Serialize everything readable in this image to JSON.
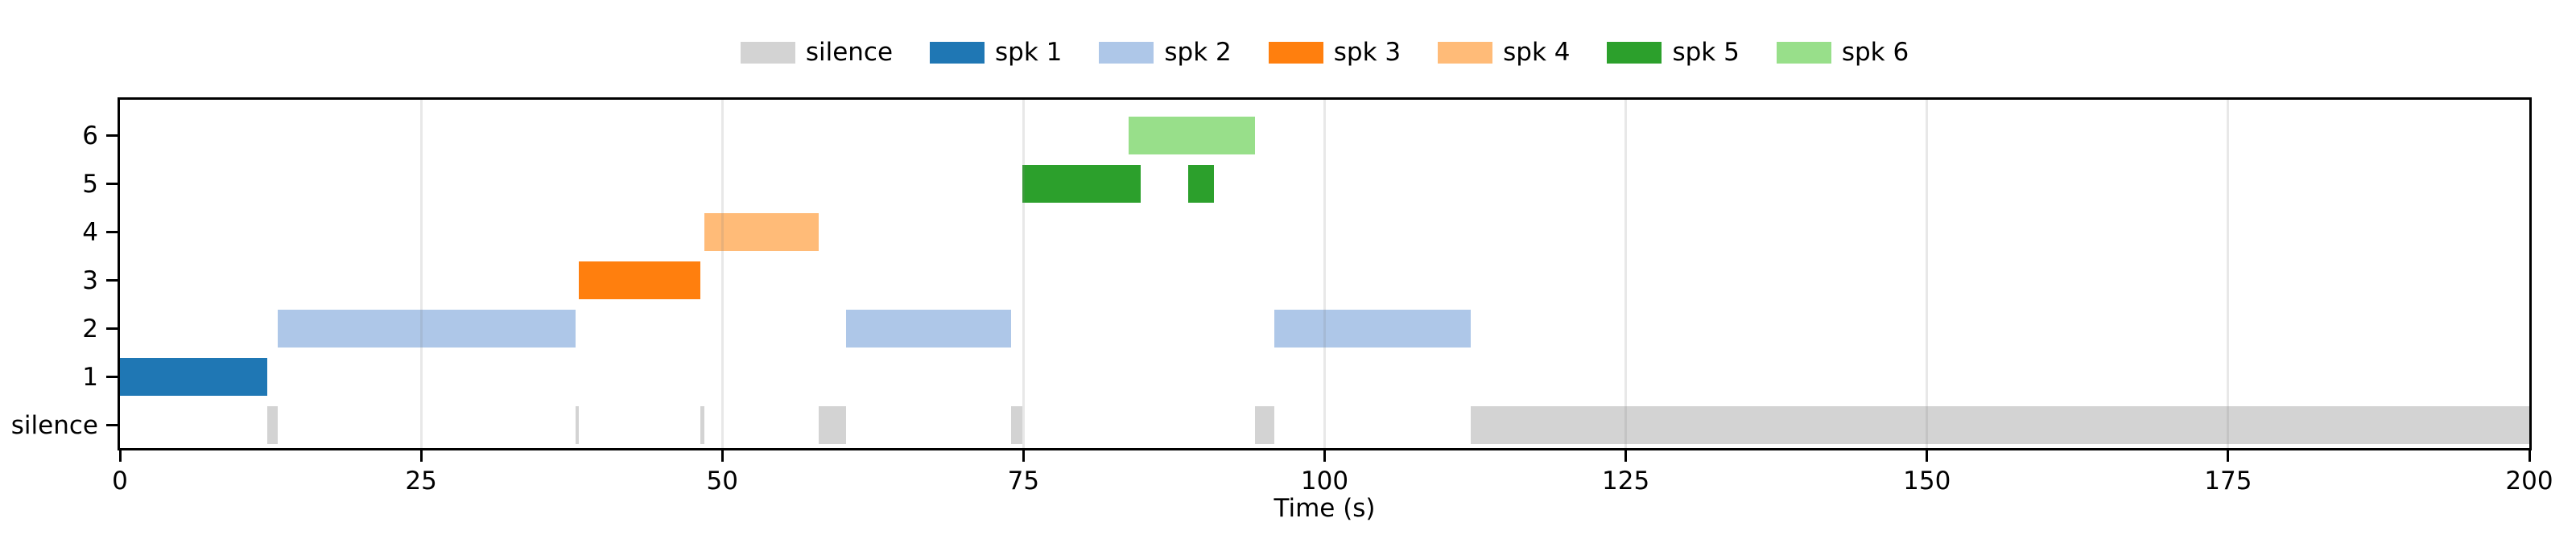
{
  "figure": {
    "background": "#ffffff",
    "text_color": "#000000"
  },
  "legend": {
    "position": "top-center",
    "items": [
      {
        "label": "silence",
        "color": "#d3d3d3"
      },
      {
        "label": "spk 1",
        "color": "#1f77b4"
      },
      {
        "label": "spk 2",
        "color": "#aec7e8"
      },
      {
        "label": "spk 3",
        "color": "#ff7f0e"
      },
      {
        "label": "spk 4",
        "color": "#ffbb78"
      },
      {
        "label": "spk 5",
        "color": "#2ca02c"
      },
      {
        "label": "spk 6",
        "color": "#98df8a"
      }
    ]
  },
  "axes": {
    "x_tick_labels": [
      "0",
      "25",
      "50",
      "75",
      "100",
      "125",
      "150",
      "175",
      "200"
    ],
    "y_tick_labels": [
      "silence",
      "1",
      "2",
      "3",
      "4",
      "5",
      "6"
    ]
  },
  "chart_data": {
    "type": "bar",
    "subtype": "horizontal-timeline-gantt (speaker diarization)",
    "title": "",
    "xlabel": "Time (s)",
    "ylabel": "",
    "xlim": [
      0,
      200
    ],
    "xticks": [
      0,
      25,
      50,
      75,
      100,
      125,
      150,
      175,
      200
    ],
    "rows": [
      "silence",
      "1",
      "2",
      "3",
      "4",
      "5",
      "6"
    ],
    "grid": {
      "on": true,
      "axis": "x",
      "drawn_over_bars": true
    },
    "legend_position": "above-plot-center",
    "series": [
      {
        "name": "silence",
        "row": "silence",
        "color": "#d3d3d3",
        "intervals": [
          [
            12.2,
            13.1
          ],
          [
            37.8,
            38.1
          ],
          [
            48.2,
            48.5
          ],
          [
            58.0,
            60.3
          ],
          [
            74.0,
            74.9
          ],
          [
            94.2,
            95.8
          ],
          [
            112.1,
            200.0
          ]
        ]
      },
      {
        "name": "spk 1",
        "row": "1",
        "color": "#1f77b4",
        "intervals": [
          [
            0.0,
            12.2
          ]
        ]
      },
      {
        "name": "spk 2",
        "row": "2",
        "color": "#aec7e8",
        "intervals": [
          [
            13.1,
            37.8
          ],
          [
            60.3,
            74.0
          ],
          [
            95.8,
            112.1
          ]
        ]
      },
      {
        "name": "spk 3",
        "row": "3",
        "color": "#ff7f0e",
        "intervals": [
          [
            38.1,
            48.2
          ]
        ]
      },
      {
        "name": "spk 4",
        "row": "4",
        "color": "#ffbb78",
        "intervals": [
          [
            48.5,
            58.0
          ]
        ]
      },
      {
        "name": "spk 5",
        "row": "5",
        "color": "#2ca02c",
        "intervals": [
          [
            74.9,
            84.7
          ],
          [
            88.7,
            90.8
          ]
        ]
      },
      {
        "name": "spk 6",
        "row": "6",
        "color": "#98df8a",
        "intervals": [
          [
            83.7,
            94.2
          ]
        ]
      }
    ]
  }
}
